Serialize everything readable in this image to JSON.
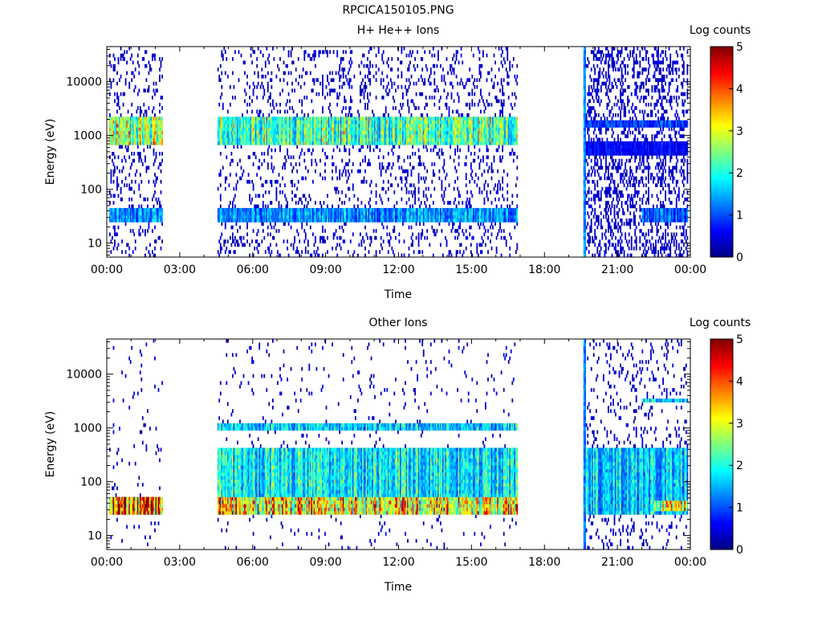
{
  "figure_title": "RPCICA150105.PNG",
  "chart_data": [
    {
      "type": "heatmap",
      "title": "H+ He++ Ions",
      "xlabel": "Time",
      "ylabel": "Energy (eV)",
      "x_ticks": [
        "00:00",
        "03:00",
        "06:00",
        "09:00",
        "12:00",
        "15:00",
        "18:00",
        "21:00",
        "00:00"
      ],
      "x_range_hours": [
        0,
        24
      ],
      "y_scale": "log",
      "y_range": [
        5.5,
        45000
      ],
      "y_ticks": [
        10,
        100,
        1000,
        10000
      ],
      "y_tick_labels": [
        "10",
        "100",
        "1000",
        "10000"
      ],
      "colorbar": {
        "label": "Log counts",
        "range": [
          0,
          5
        ],
        "ticks": [
          "0",
          "1",
          "2",
          "3",
          "4",
          "5"
        ],
        "colormap": "jet"
      },
      "data_intervals_hours": [
        [
          0.1,
          2.3
        ],
        [
          4.5,
          16.9
        ],
        [
          19.6,
          23.9
        ]
      ],
      "time_energy_features": [
        {
          "t": [
            0.1,
            2.3
          ],
          "energy_ev": [
            700,
            2200
          ],
          "log_counts": 3
        },
        {
          "t": [
            4.5,
            16.9
          ],
          "energy_ev": [
            700,
            2200
          ],
          "log_counts": 2.5
        },
        {
          "t": [
            0.1,
            16.9
          ],
          "energy_ev": [
            25,
            45
          ],
          "log_counts": 1.5
        },
        {
          "t": [
            19.6,
            19.7
          ],
          "energy_ev": [
            5.5,
            45000
          ],
          "log_counts": 1.8
        },
        {
          "t": [
            19.7,
            23.9
          ],
          "energy_ev": [
            1500,
            2000
          ],
          "log_counts": 1
        },
        {
          "t": [
            19.7,
            23.9
          ],
          "energy_ev": [
            400,
            800
          ],
          "log_counts": 0.7
        },
        {
          "t": [
            22,
            23.9
          ],
          "energy_ev": [
            25,
            45
          ],
          "log_counts": 1.2
        }
      ]
    },
    {
      "type": "heatmap",
      "title": "Other Ions",
      "xlabel": "Time",
      "ylabel": "Energy (eV)",
      "x_ticks": [
        "00:00",
        "03:00",
        "06:00",
        "09:00",
        "12:00",
        "15:00",
        "18:00",
        "21:00",
        "00:00"
      ],
      "x_range_hours": [
        0,
        24
      ],
      "y_scale": "log",
      "y_range": [
        5.5,
        45000
      ],
      "y_ticks": [
        10,
        100,
        1000,
        10000
      ],
      "y_tick_labels": [
        "10",
        "100",
        "1000",
        "10000"
      ],
      "colorbar": {
        "label": "Log counts",
        "range": [
          0,
          5
        ],
        "ticks": [
          "0",
          "1",
          "2",
          "3",
          "4",
          "5"
        ],
        "colormap": "jet"
      },
      "data_intervals_hours": [
        [
          0.1,
          2.3
        ],
        [
          4.5,
          16.9
        ],
        [
          19.6,
          23.9
        ]
      ],
      "time_energy_features": [
        {
          "t": [
            0.1,
            2.3
          ],
          "energy_ev": [
            25,
            50
          ],
          "log_counts": 4.5
        },
        {
          "t": [
            4.5,
            16.9
          ],
          "energy_ev": [
            25,
            50
          ],
          "log_counts": 3.5
        },
        {
          "t": [
            4.5,
            16.9
          ],
          "energy_ev": [
            50,
            400
          ],
          "log_counts": 2
        },
        {
          "t": [
            4.5,
            16.9
          ],
          "energy_ev": [
            900,
            1300
          ],
          "log_counts": 1.8
        },
        {
          "t": [
            19.6,
            19.7
          ],
          "energy_ev": [
            5.5,
            45000
          ],
          "log_counts": 1.8
        },
        {
          "t": [
            19.7,
            23.9
          ],
          "energy_ev": [
            25,
            400
          ],
          "log_counts": 1.8
        },
        {
          "t": [
            22.5,
            23.9
          ],
          "energy_ev": [
            30,
            45
          ],
          "log_counts": 3.5
        },
        {
          "t": [
            22,
            23.9
          ],
          "energy_ev": [
            3000,
            3500
          ],
          "log_counts": 1.8
        }
      ]
    }
  ]
}
